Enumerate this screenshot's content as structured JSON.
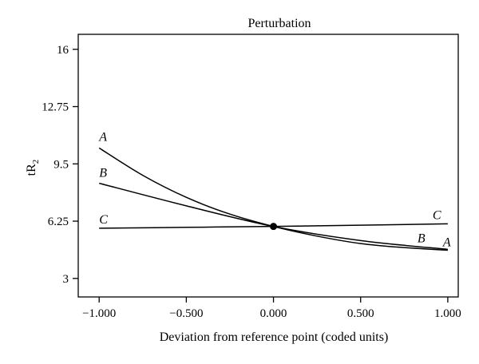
{
  "chart_data": {
    "type": "line",
    "title": "Perturbation",
    "xlabel": "Deviation from reference point (coded units)",
    "ylabel": "tR",
    "ylabel_subscript": "2",
    "xlim": [
      -1.12,
      1.06
    ],
    "ylim": [
      1.95,
      16.85
    ],
    "x_ticks": [
      -1.0,
      -0.5,
      0.0,
      0.5,
      1.0
    ],
    "x_tick_labels": [
      "−1.000",
      "−0.500",
      "0.000",
      "0.500",
      "1.000"
    ],
    "y_ticks": [
      3,
      6.25,
      9.5,
      12.75,
      16
    ],
    "y_tick_labels": [
      "3",
      "6.25",
      "9.5",
      "12.75",
      "16"
    ],
    "grid": false,
    "reference_point": {
      "x": 0.0,
      "y": 5.95
    },
    "series": [
      {
        "name": "A",
        "x": [
          -1.0,
          -0.75,
          -0.5,
          -0.25,
          0.0,
          0.25,
          0.5,
          0.75,
          1.0
        ],
        "y": [
          10.4,
          8.85,
          7.6,
          6.65,
          5.95,
          5.4,
          4.98,
          4.75,
          4.6
        ]
      },
      {
        "name": "B",
        "x": [
          -1.0,
          -0.5,
          0.0,
          0.5,
          1.0
        ],
        "y": [
          8.4,
          7.12,
          5.95,
          5.15,
          4.65
        ]
      },
      {
        "name": "C",
        "x": [
          -1.0,
          -0.5,
          0.0,
          0.5,
          1.0
        ],
        "y": [
          5.85,
          5.9,
          5.95,
          6.02,
          6.1
        ]
      }
    ]
  }
}
